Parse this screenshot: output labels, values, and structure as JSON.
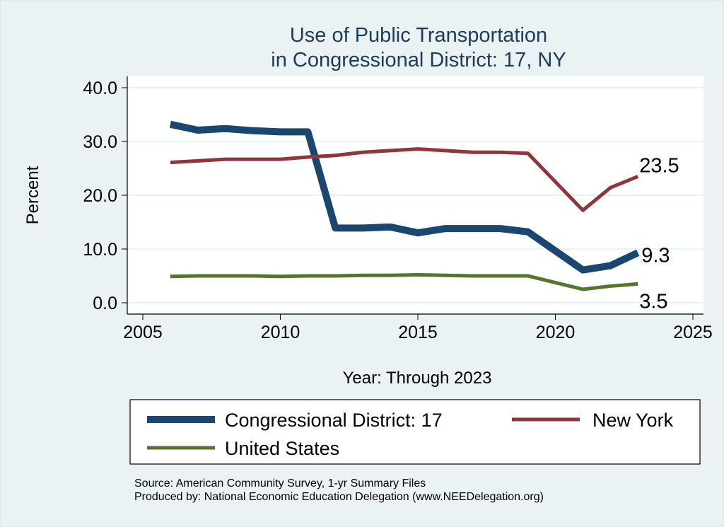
{
  "chart_data": {
    "type": "line",
    "title": [
      "Use of Public Transportation",
      "in Congressional District: 17, NY"
    ],
    "xlabel": "Year: Through 2023",
    "ylabel": "Percent",
    "xlim": [
      2005,
      2025
    ],
    "ylim": [
      0,
      40
    ],
    "xticks": [
      "2005",
      "2010",
      "2015",
      "2020",
      "2025"
    ],
    "yticks": [
      "0.0",
      "10.0",
      "20.0",
      "30.0",
      "40.0"
    ],
    "grid": true,
    "legend_placement": "bottom",
    "x": [
      2006,
      2007,
      2008,
      2009,
      2010,
      2011,
      2012,
      2013,
      2014,
      2015,
      2016,
      2017,
      2018,
      2019,
      2021,
      2022,
      2023
    ],
    "series": [
      {
        "name": "Congressional District: 17",
        "color": "#1a476f",
        "values": [
          33.2,
          32.1,
          32.4,
          32.0,
          31.8,
          31.8,
          13.9,
          13.9,
          14.1,
          13.0,
          13.8,
          13.8,
          13.8,
          13.2,
          6.1,
          6.9,
          9.3
        ],
        "end_label": "9.3"
      },
      {
        "name": "New York",
        "color": "#90353b",
        "values": [
          26.1,
          26.4,
          26.7,
          26.7,
          26.7,
          27.1,
          27.4,
          28.0,
          28.3,
          28.6,
          28.3,
          28.0,
          28.0,
          27.8,
          17.2,
          21.4,
          23.5
        ],
        "end_label": "23.5"
      },
      {
        "name": "United States",
        "color": "#55752f",
        "values": [
          4.9,
          5.0,
          5.0,
          5.0,
          4.9,
          5.0,
          5.0,
          5.1,
          5.1,
          5.2,
          5.1,
          5.0,
          5.0,
          5.0,
          2.5,
          3.1,
          3.5
        ],
        "end_label": "3.5"
      }
    ]
  },
  "notes": [
    "Source: American Community Survey, 1-yr Summary Files",
    "Produced by: National Economic Education Delegation (www.NEEDelegation.org)"
  ]
}
